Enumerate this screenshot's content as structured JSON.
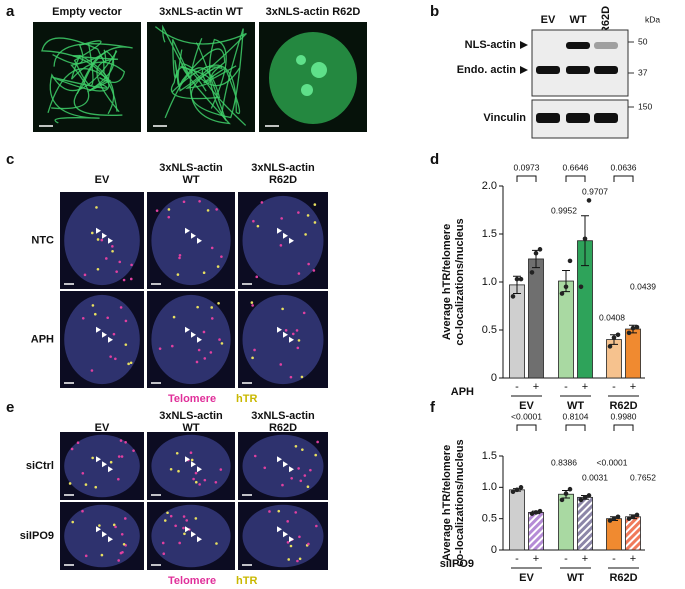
{
  "panel_labels": [
    "a",
    "b",
    "c",
    "d",
    "e",
    "f"
  ],
  "a": {
    "columns": [
      "Empty vector",
      "3xNLS-actin WT",
      "3xNLS-actin R62D"
    ]
  },
  "b": {
    "lanes": [
      "EV",
      "WT",
      "R62D"
    ],
    "unit": "kDa",
    "markers": [
      50,
      37,
      150
    ],
    "bands": [
      "NLS-actin",
      "Endo. actin",
      "Vinculin"
    ]
  },
  "c": {
    "columns": [
      [
        "EV"
      ],
      [
        "3xNLS-actin",
        "WT"
      ],
      [
        "3xNLS-actin",
        "R62D"
      ]
    ],
    "rows": [
      "NTC",
      "APH"
    ],
    "legend": [
      "Telomere",
      "hTR"
    ]
  },
  "e": {
    "columns": [
      [
        "EV"
      ],
      [
        "3xNLS-actin",
        "WT"
      ],
      [
        "3xNLS-actin",
        "R62D"
      ]
    ],
    "rows": [
      "siCtrl",
      "siIPO9"
    ],
    "legend": [
      "Telomere",
      "hTR"
    ]
  },
  "chart_data": [
    {
      "type": "bar",
      "y_label": [
        "Average hTR/telomere",
        "co-localizations/nucleus"
      ],
      "treatment_label": "APH",
      "categories": [
        "-",
        "+",
        "-",
        "+",
        "-",
        "+"
      ],
      "groups": [
        "EV",
        "WT",
        "R62D"
      ],
      "values": [
        0.97,
        1.24,
        1.01,
        1.43,
        0.4,
        0.51
      ],
      "errors": [
        0.09,
        0.09,
        0.11,
        0.26,
        0.05,
        0.04
      ],
      "points": [
        [
          0.85,
          1.03,
          1.03
        ],
        [
          1.1,
          1.3,
          1.34
        ],
        [
          0.88,
          0.95,
          1.22
        ],
        [
          0.95,
          1.45,
          1.85
        ],
        [
          0.33,
          0.42,
          0.45
        ],
        [
          0.47,
          0.52,
          0.53
        ]
      ],
      "colors": [
        "#cfcfcf",
        "#6f6f6f",
        "#a9d9a2",
        "#2ea35a",
        "#f6c28e",
        "#f08a30"
      ],
      "hatch": [
        false,
        false,
        false,
        false,
        false,
        false
      ],
      "ylim": [
        0,
        2
      ],
      "yticks": [
        0,
        0.5,
        {
          "value": 1,
          "label": "1.0"
        },
        1.5,
        {
          "value": 2,
          "label": "2.0"
        }
      ],
      "comparisons": [
        "0.0973",
        "0.6646",
        "0.0636"
      ],
      "annotations": [
        "0.9952",
        "0.9707",
        "0.0408",
        "0.0439"
      ]
    },
    {
      "type": "bar",
      "y_label": [
        "Average hTR/telomere",
        "co-localizations/nucleus"
      ],
      "treatment_label": "siIPO9",
      "categories": [
        "-",
        "+",
        "-",
        "+",
        "-",
        "+"
      ],
      "groups": [
        "EV",
        "WT",
        "R62D"
      ],
      "values": [
        0.96,
        0.6,
        0.89,
        0.84,
        0.5,
        0.53
      ],
      "errors": [
        0.02,
        0.02,
        0.06,
        0.03,
        0.03,
        0.03
      ],
      "points": [
        [
          0.93,
          0.96,
          1.0
        ],
        [
          0.58,
          0.6,
          0.62
        ],
        [
          0.8,
          0.9,
          0.97
        ],
        [
          0.8,
          0.84,
          0.87
        ],
        [
          0.47,
          0.5,
          0.53
        ],
        [
          0.5,
          0.53,
          0.56
        ]
      ],
      "colors": [
        "#cfcfcf",
        "#b58cd6",
        "#a9d9a2",
        "#8c86a8",
        "#f08a30",
        "#f07a5a"
      ],
      "hatch": [
        false,
        true,
        false,
        true,
        false,
        true
      ],
      "ylim": [
        0,
        1.5
      ],
      "yticks": [
        0,
        0.5,
        {
          "value": 1,
          "label": "1.0"
        },
        1.5
      ],
      "comparisons": [
        "<0.0001",
        "0.8104",
        "0.9980"
      ],
      "annotations": [
        "0.8386",
        "0.0031",
        "<0.0001",
        "0.7652"
      ]
    }
  ]
}
